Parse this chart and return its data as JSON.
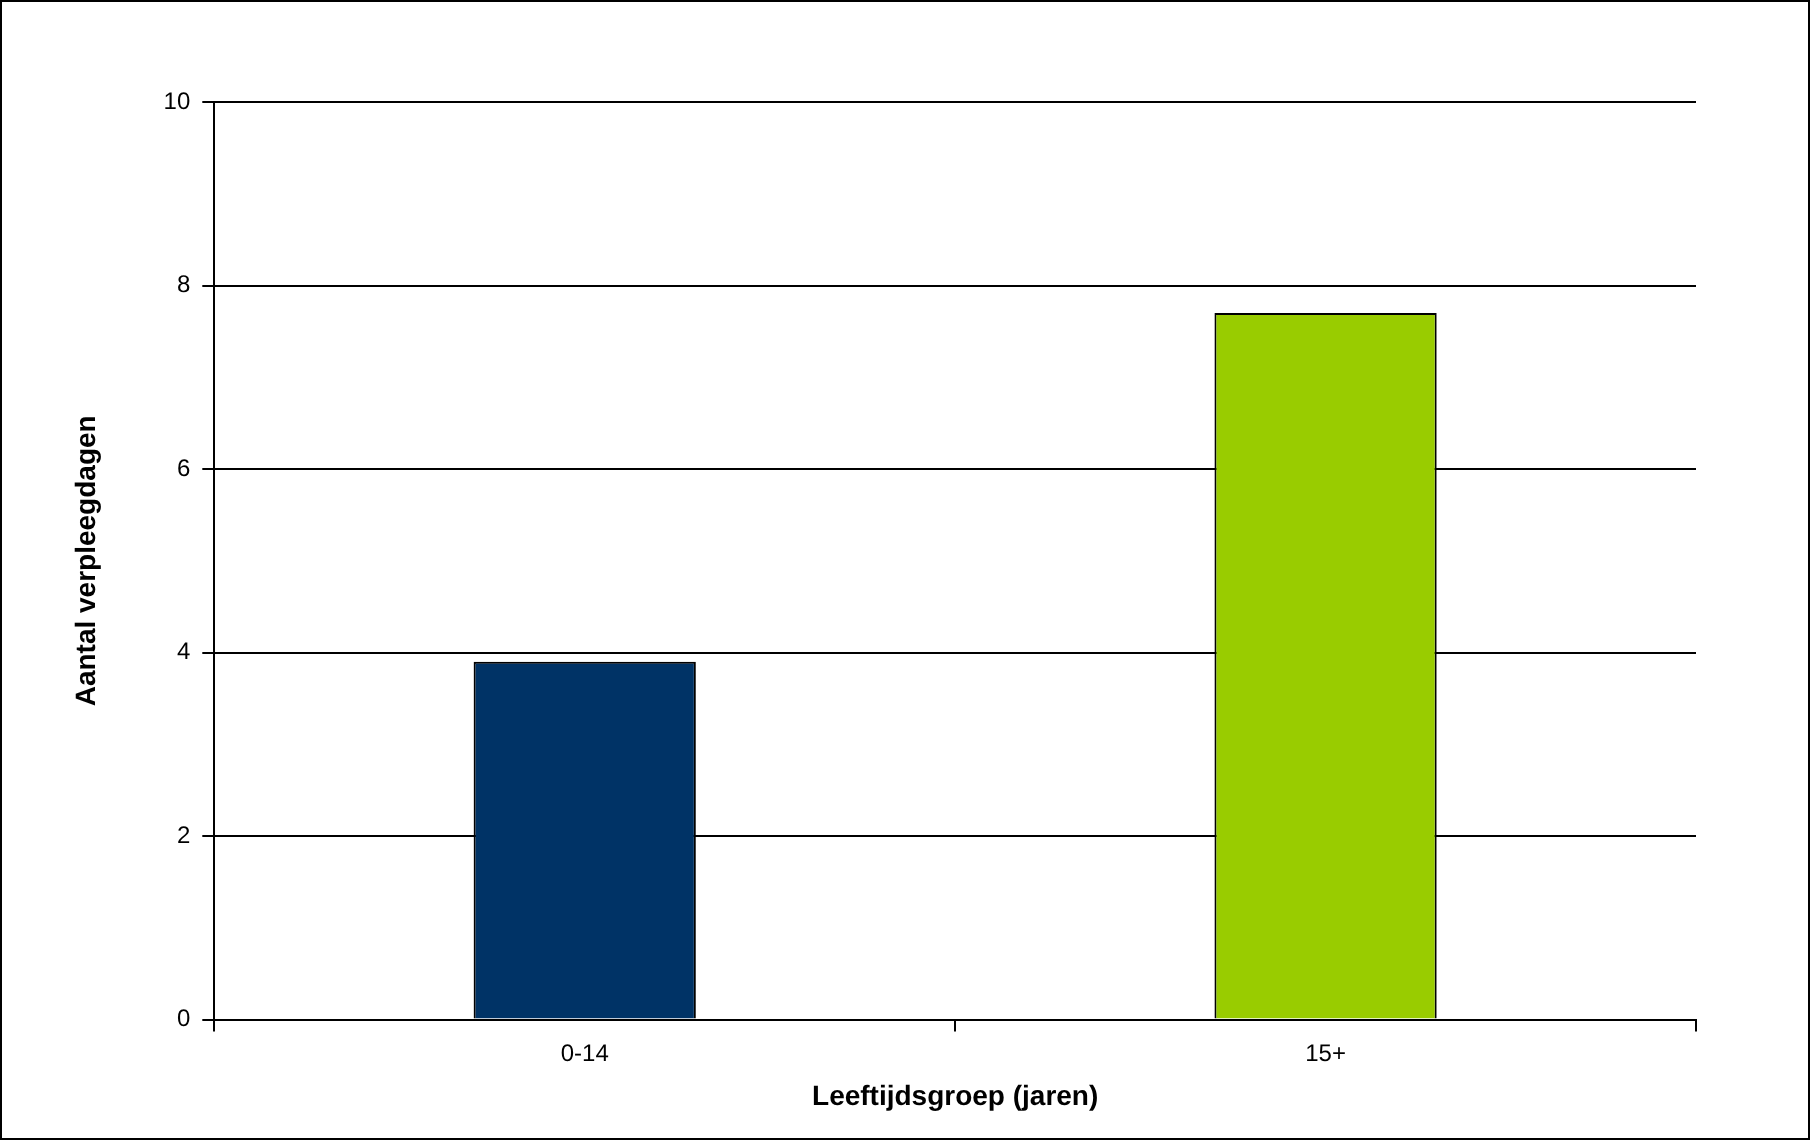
{
  "chart_data": {
    "type": "bar",
    "xlabel": "Leeftijdsgroep (jaren)",
    "ylabel": "Aantal verpleegdagen",
    "categories": [
      "0-14",
      "15+"
    ],
    "values": [
      3.9,
      7.7
    ],
    "colors": [
      "#003366",
      "#99cc00"
    ],
    "ylim": [
      0,
      10
    ],
    "yticks": [
      0,
      2,
      4,
      6,
      8,
      10
    ],
    "grid": "y",
    "legend": false
  }
}
